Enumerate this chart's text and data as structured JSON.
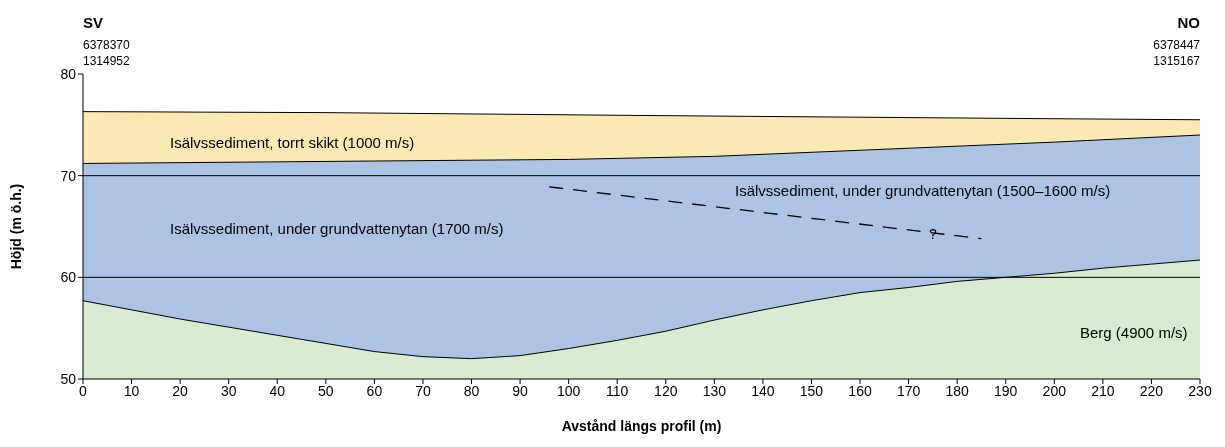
{
  "chart_data": {
    "type": "area",
    "xlabel": "Avstånd längs profil (m)",
    "ylabel": "Höjd (m ö.h.)",
    "xlim": [
      0,
      230
    ],
    "xticks": [
      0,
      10,
      20,
      30,
      40,
      50,
      60,
      70,
      80,
      90,
      100,
      110,
      120,
      130,
      140,
      150,
      160,
      170,
      180,
      190,
      200,
      210,
      220,
      230
    ],
    "ylim": [
      50,
      80
    ],
    "yticks": [
      50,
      60,
      70,
      80
    ],
    "series": [
      {
        "name": "Isälvssediment, torrt skikt (1000 m/s)",
        "color": "#fbe9b4",
        "x": [
          0,
          50,
          120,
          200,
          230
        ],
        "values": [
          76.3,
          76.2,
          75.9,
          75.6,
          75.5
        ]
      },
      {
        "name": "Isälvssediment, under grundvattenytan (1700 m/s)",
        "color": "#adc3e4",
        "x": [
          0,
          50,
          100,
          130,
          160,
          200,
          230
        ],
        "values": [
          71.2,
          71.4,
          71.6,
          71.9,
          72.5,
          73.3,
          74.0
        ]
      },
      {
        "name": "Berg (4900 m/s)",
        "color": "#d9ead3",
        "x": [
          0,
          10,
          20,
          30,
          40,
          50,
          60,
          70,
          80,
          90,
          100,
          110,
          120,
          130,
          140,
          150,
          160,
          170,
          180,
          190,
          200,
          210,
          220,
          230
        ],
        "values": [
          57.7,
          56.8,
          55.9,
          55.1,
          54.3,
          53.5,
          52.7,
          52.2,
          52.0,
          52.3,
          53.0,
          53.8,
          54.7,
          55.8,
          56.8,
          57.7,
          58.5,
          59.0,
          59.6,
          60.0,
          60.4,
          60.9,
          61.3,
          61.7
        ]
      },
      {
        "type": "line",
        "color": "#000000",
        "line_style": "dashed",
        "x": [
          96,
          185
        ],
        "values": [
          68.9,
          63.8
        ]
      }
    ],
    "ref_lines": [
      {
        "axis": "y",
        "value": 60,
        "color": "#000000"
      },
      {
        "axis": "y",
        "value": 70,
        "color": "#000000"
      }
    ],
    "annotations": [
      "SV",
      "6378370",
      "1314952",
      "NO",
      "6378447",
      "1315167",
      "Isälvssediment, under grundvattenytan (1500–1600 m/s)",
      {
        "text": "?",
        "x": 175,
        "y": 64.3
      }
    ]
  }
}
